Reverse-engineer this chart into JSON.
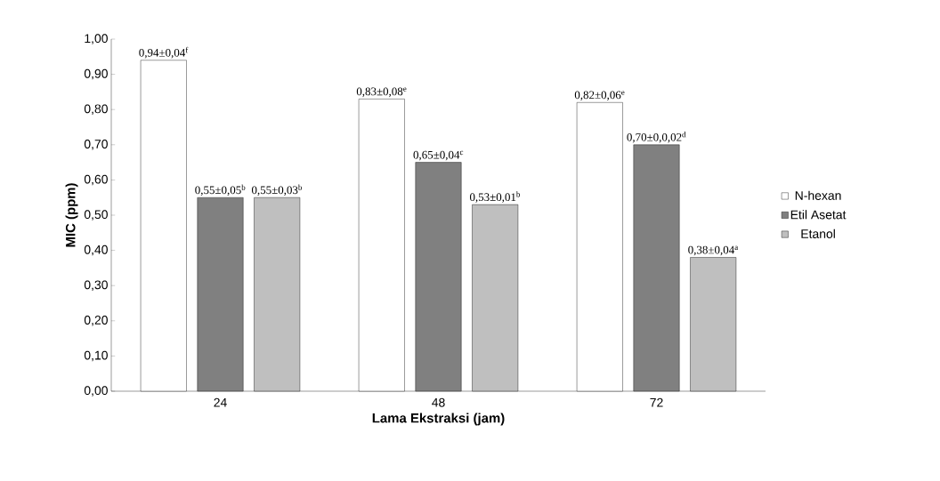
{
  "chart_data": {
    "type": "bar",
    "xlabel": "Lama Ekstraksi (jam)",
    "ylabel": "MIC (ppm)",
    "categories": [
      "24",
      "48",
      "72"
    ],
    "series": [
      {
        "name": "N-hexan",
        "color": "#ffffff",
        "values": [
          0.94,
          0.83,
          0.82
        ],
        "value_labels": [
          "0,94±0,04$^{f}$",
          "0,83±0,08$^{e}$",
          "0,82±0,06$^{e}$"
        ]
      },
      {
        "name": "Etil Asetat",
        "color": "#808080",
        "values": [
          0.55,
          0.65,
          0.7
        ],
        "value_labels": [
          "0,55±0,05$^{b}$",
          "0,65±0,04$^{c}$",
          "0,70±0,0,02$^{d}$"
        ]
      },
      {
        "name": "Etanol",
        "color": "#bfbfbf",
        "values": [
          0.55,
          0.53,
          0.38
        ],
        "value_labels": [
          "0,55±0,03$^{b}$",
          "0,53±0,01$^{b}$",
          "0,38±0,04$^{a}$"
        ]
      }
    ],
    "ylim": [
      0,
      1
    ],
    "yticks": [
      {
        "value": 0,
        "label": "0,00"
      },
      {
        "value": 0.1,
        "label": "0,10"
      },
      {
        "value": 0.2,
        "label": "0,20"
      },
      {
        "value": 0.3,
        "label": "0,30"
      },
      {
        "value": 0.4,
        "label": "0,40"
      },
      {
        "value": 0.5,
        "label": "0,50"
      },
      {
        "value": 0.6,
        "label": "0,60"
      },
      {
        "value": 0.7,
        "label": "0,70"
      },
      {
        "value": 0.8,
        "label": "0,80"
      },
      {
        "value": 0.9,
        "label": "0,90"
      },
      {
        "value": 1,
        "label": "1,00"
      }
    ],
    "grid": false,
    "legend": "right"
  }
}
